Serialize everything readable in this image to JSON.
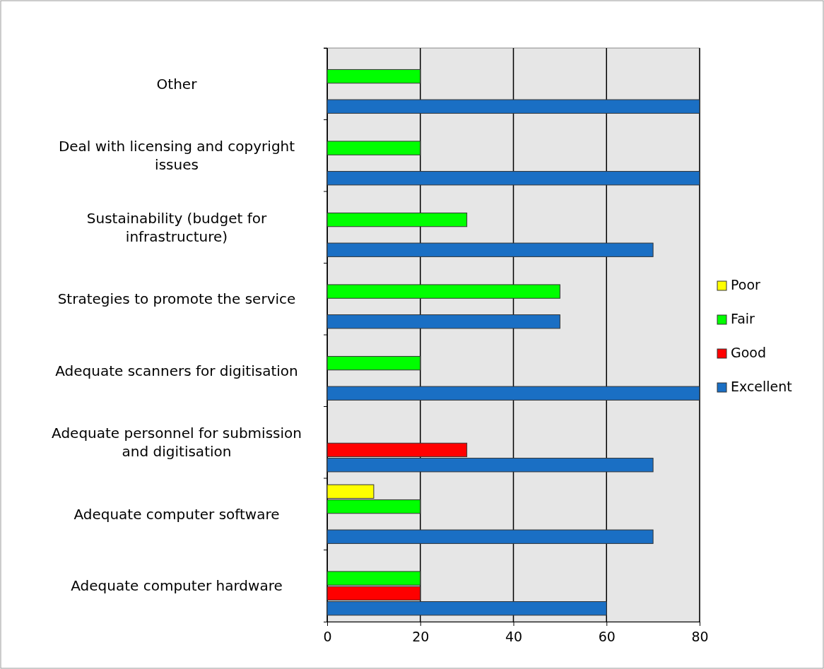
{
  "chart_data": {
    "type": "bar",
    "orientation": "horizontal",
    "categories": [
      "Other",
      "Deal with licensing and copyright issues",
      "Sustainability (budget for infrastructure)",
      "Strategies to promote the service",
      "Adequate scanners for digitisation",
      "Adequate personnel for submission and digitisation",
      "Adequate computer software",
      "Adequate computer hardware"
    ],
    "series": [
      {
        "name": "Poor",
        "color": "#ffff00",
        "values": [
          0,
          0,
          0,
          0,
          0,
          0,
          10,
          0
        ]
      },
      {
        "name": "Fair",
        "color": "#00ff00",
        "values": [
          20,
          20,
          30,
          50,
          20,
          0,
          20,
          20
        ]
      },
      {
        "name": "Good",
        "color": "#ff0000",
        "values": [
          0,
          0,
          0,
          0,
          0,
          30,
          0,
          20
        ]
      },
      {
        "name": "Excellent",
        "color": "#1a6fc4",
        "values": [
          80,
          80,
          70,
          50,
          80,
          70,
          70,
          60
        ]
      }
    ],
    "xlim": [
      0,
      80
    ],
    "xticks": [
      0,
      20,
      40,
      60,
      80
    ],
    "grid": "x",
    "legend": "right"
  }
}
